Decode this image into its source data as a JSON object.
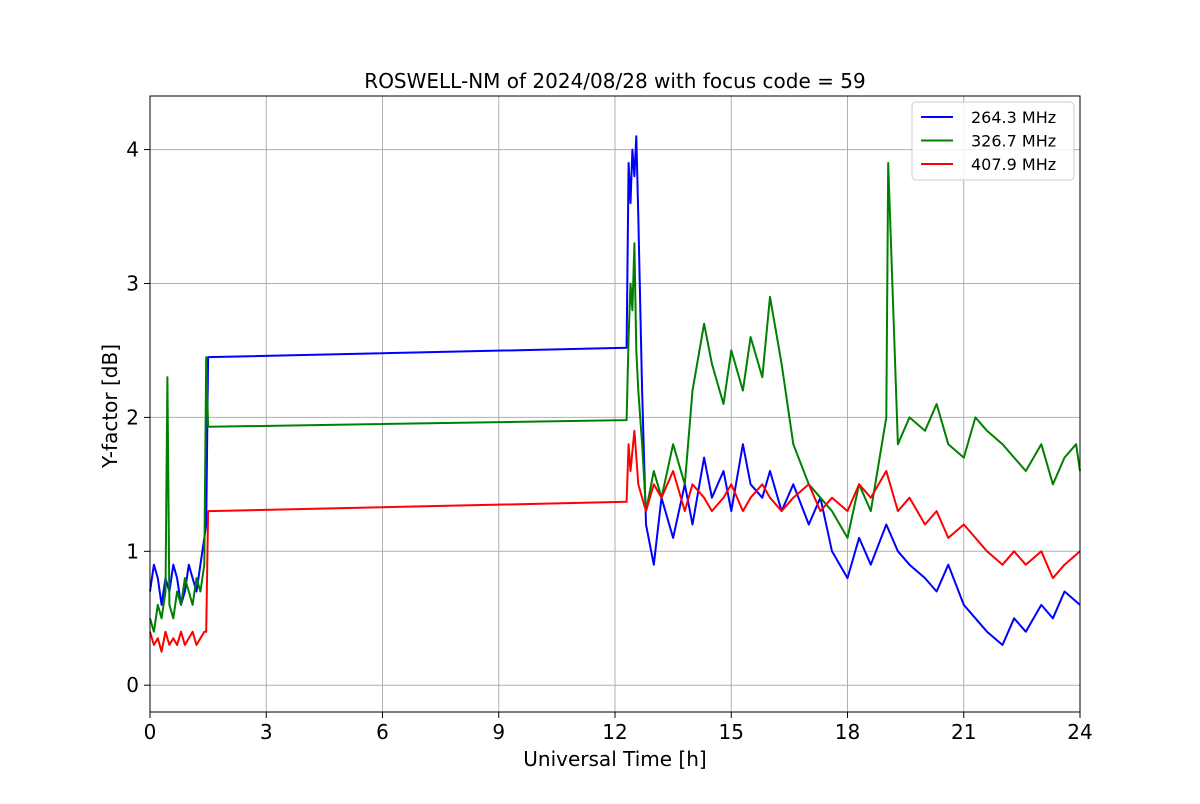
{
  "chart_data": {
    "type": "line",
    "title": "ROSWELL-NM of 2024/08/28 with focus code = 59",
    "xlabel": "Universal Time [h]",
    "ylabel": "Y-factor [dB]",
    "xlim": [
      0,
      24
    ],
    "ylim": [
      -0.2,
      4.4
    ],
    "xticks": [
      0,
      3,
      6,
      9,
      12,
      15,
      18,
      21,
      24
    ],
    "yticks": [
      0,
      1,
      2,
      3,
      4
    ],
    "grid": true,
    "legend_position": "top-right",
    "series": [
      {
        "name": "264.3 MHz",
        "color": "#0000ff",
        "x": [
          0.0,
          0.1,
          0.2,
          0.3,
          0.4,
          0.5,
          0.6,
          0.7,
          0.8,
          0.9,
          1.0,
          1.1,
          1.2,
          1.3,
          1.4,
          1.45,
          1.5,
          1.52,
          12.3,
          12.35,
          12.4,
          12.45,
          12.5,
          12.55,
          12.6,
          12.7,
          12.8,
          13.0,
          13.2,
          13.5,
          13.8,
          14.0,
          14.3,
          14.5,
          14.8,
          15.0,
          15.3,
          15.5,
          15.8,
          16.0,
          16.3,
          16.6,
          17.0,
          17.3,
          17.6,
          18.0,
          18.3,
          18.6,
          19.0,
          19.3,
          19.6,
          20.0,
          20.3,
          20.6,
          21.0,
          21.3,
          21.6,
          22.0,
          22.3,
          22.6,
          23.0,
          23.3,
          23.6,
          24.0
        ],
        "y": [
          0.7,
          0.9,
          0.8,
          0.6,
          0.8,
          0.7,
          0.9,
          0.8,
          0.6,
          0.7,
          0.9,
          0.8,
          0.7,
          0.9,
          1.1,
          1.2,
          2.45,
          2.45,
          2.52,
          3.9,
          3.6,
          4.0,
          3.8,
          4.1,
          3.5,
          2.2,
          1.2,
          0.9,
          1.4,
          1.1,
          1.5,
          1.2,
          1.7,
          1.4,
          1.6,
          1.3,
          1.8,
          1.5,
          1.4,
          1.6,
          1.3,
          1.5,
          1.2,
          1.4,
          1.0,
          0.8,
          1.1,
          0.9,
          1.2,
          1.0,
          0.9,
          0.8,
          0.7,
          0.9,
          0.6,
          0.5,
          0.4,
          0.3,
          0.5,
          0.4,
          0.6,
          0.5,
          0.7,
          0.6
        ]
      },
      {
        "name": "326.7 MHz",
        "color": "#008000",
        "x": [
          0.0,
          0.1,
          0.2,
          0.3,
          0.4,
          0.45,
          0.5,
          0.6,
          0.7,
          0.8,
          0.9,
          1.0,
          1.1,
          1.2,
          1.3,
          1.4,
          1.45,
          1.5,
          1.52,
          12.3,
          12.35,
          12.4,
          12.45,
          12.5,
          12.55,
          12.6,
          12.7,
          12.8,
          13.0,
          13.2,
          13.5,
          13.8,
          14.0,
          14.3,
          14.5,
          14.8,
          15.0,
          15.3,
          15.5,
          15.8,
          16.0,
          16.3,
          16.6,
          17.0,
          17.3,
          17.6,
          18.0,
          18.3,
          18.6,
          19.0,
          19.05,
          19.3,
          19.6,
          20.0,
          20.3,
          20.6,
          21.0,
          21.3,
          21.6,
          22.0,
          22.3,
          22.6,
          23.0,
          23.3,
          23.6,
          23.9,
          24.0
        ],
        "y": [
          0.5,
          0.4,
          0.6,
          0.5,
          0.7,
          2.3,
          0.6,
          0.5,
          0.7,
          0.6,
          0.8,
          0.7,
          0.6,
          0.8,
          0.7,
          0.9,
          2.45,
          1.93,
          1.93,
          1.98,
          2.6,
          3.0,
          2.8,
          3.3,
          2.5,
          2.2,
          1.8,
          1.3,
          1.6,
          1.4,
          1.8,
          1.5,
          2.2,
          2.7,
          2.4,
          2.1,
          2.5,
          2.2,
          2.6,
          2.3,
          2.9,
          2.4,
          1.8,
          1.5,
          1.4,
          1.3,
          1.1,
          1.5,
          1.3,
          2.0,
          3.9,
          1.8,
          2.0,
          1.9,
          2.1,
          1.8,
          1.7,
          2.0,
          1.9,
          1.8,
          1.7,
          1.6,
          1.8,
          1.5,
          1.7,
          1.8,
          1.6
        ]
      },
      {
        "name": "407.9 MHz",
        "color": "#ff0000",
        "x": [
          0.0,
          0.1,
          0.2,
          0.3,
          0.4,
          0.5,
          0.6,
          0.7,
          0.8,
          0.9,
          1.0,
          1.1,
          1.2,
          1.3,
          1.4,
          1.45,
          1.5,
          1.52,
          12.3,
          12.35,
          12.4,
          12.5,
          12.6,
          12.7,
          12.8,
          13.0,
          13.2,
          13.5,
          13.8,
          14.0,
          14.3,
          14.5,
          14.8,
          15.0,
          15.3,
          15.5,
          15.8,
          16.0,
          16.3,
          16.6,
          17.0,
          17.3,
          17.6,
          18.0,
          18.3,
          18.6,
          19.0,
          19.3,
          19.6,
          20.0,
          20.3,
          20.6,
          21.0,
          21.3,
          21.6,
          22.0,
          22.3,
          22.6,
          23.0,
          23.3,
          23.6,
          24.0
        ],
        "y": [
          0.4,
          0.3,
          0.35,
          0.25,
          0.4,
          0.3,
          0.35,
          0.3,
          0.4,
          0.3,
          0.35,
          0.4,
          0.3,
          0.35,
          0.4,
          0.4,
          1.3,
          1.3,
          1.37,
          1.8,
          1.6,
          1.9,
          1.5,
          1.4,
          1.3,
          1.5,
          1.4,
          1.6,
          1.3,
          1.5,
          1.4,
          1.3,
          1.4,
          1.5,
          1.3,
          1.4,
          1.5,
          1.4,
          1.3,
          1.4,
          1.5,
          1.3,
          1.4,
          1.3,
          1.5,
          1.4,
          1.6,
          1.3,
          1.4,
          1.2,
          1.3,
          1.1,
          1.2,
          1.1,
          1.0,
          0.9,
          1.0,
          0.9,
          1.0,
          0.8,
          0.9,
          1.0
        ]
      }
    ]
  }
}
